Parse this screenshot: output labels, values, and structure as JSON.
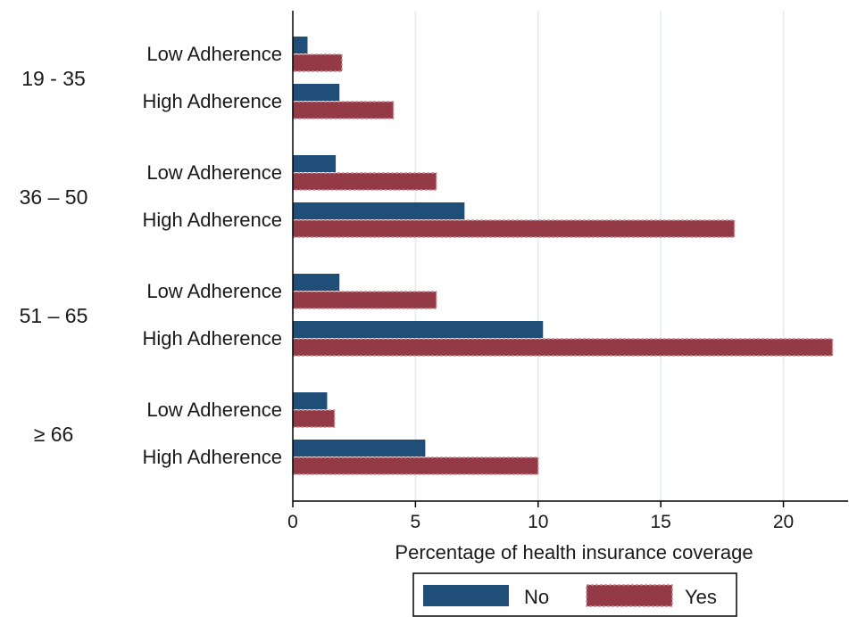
{
  "chart_data": {
    "type": "bar",
    "orientation": "horizontal",
    "title": "",
    "xlabel": "Percentage of health insurance coverage",
    "ylabel": "",
    "xlim": [
      0,
      22.2
    ],
    "xticks": [
      0,
      5,
      10,
      15,
      20
    ],
    "xtick_labels": [
      "0",
      "5",
      "10",
      "15",
      "20"
    ],
    "grid": "vertical",
    "legend_position": "bottom",
    "colors": {
      "No": "#1f4e79",
      "Yes": "#943a47"
    },
    "groups": [
      {
        "label": "19 - 35",
        "rows": [
          {
            "label": "Low Adherence",
            "No": 0.6,
            "Yes": 2.0
          },
          {
            "label": "High Adherence",
            "No": 1.9,
            "Yes": 4.1
          }
        ]
      },
      {
        "label": "36 – 50",
        "rows": [
          {
            "label": "Low Adherence",
            "No": 1.75,
            "Yes": 5.85
          },
          {
            "label": "High Adherence",
            "No": 7.0,
            "Yes": 18.0
          }
        ]
      },
      {
        "label": "51 – 65",
        "rows": [
          {
            "label": "Low Adherence",
            "No": 1.9,
            "Yes": 5.85
          },
          {
            "label": "High Adherence",
            "No": 10.2,
            "Yes": 22.0
          }
        ]
      },
      {
        "label": "≥ 66",
        "rows": [
          {
            "label": "Low Adherence",
            "No": 1.4,
            "Yes": 1.7
          },
          {
            "label": "High Adherence",
            "No": 5.4,
            "Yes": 10.0
          }
        ]
      }
    ],
    "legend": [
      "No",
      "Yes"
    ]
  }
}
